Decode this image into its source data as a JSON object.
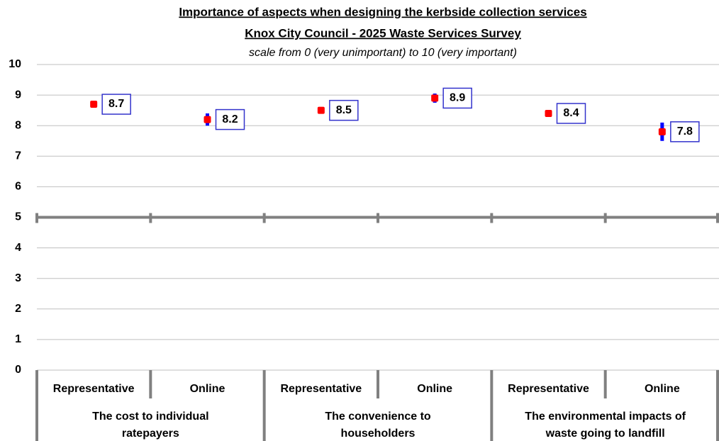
{
  "chart_data": {
    "type": "dot",
    "title": "Importance of aspects when designing the kerbside collection services",
    "subtitle": "Knox City Council - 2025 Waste Services Survey",
    "note": "scale from 0 (very unimportant) to 10 (very important)",
    "categories": [
      "Representative",
      "Online",
      "Representative",
      "Online",
      "Representative",
      "Online"
    ],
    "groups": [
      [
        "The cost to individual",
        "ratepayers"
      ],
      [
        "The convenience to",
        "householders"
      ],
      [
        "The environmental impacts of",
        "waste going to landfill"
      ]
    ],
    "values": [
      8.7,
      8.2,
      8.5,
      8.9,
      8.4,
      7.8
    ],
    "errors": [
      0.05,
      0.2,
      0.05,
      0.15,
      0.05,
      0.3
    ],
    "color": "#ff0000",
    "error_color": "#0000ff",
    "label_border": "#3333cc",
    "ylim": [
      0,
      10
    ],
    "yticks": [
      0,
      1,
      2,
      3,
      4,
      5,
      6,
      7,
      8,
      9,
      10
    ],
    "grid": true,
    "axis_crossing": 5
  }
}
